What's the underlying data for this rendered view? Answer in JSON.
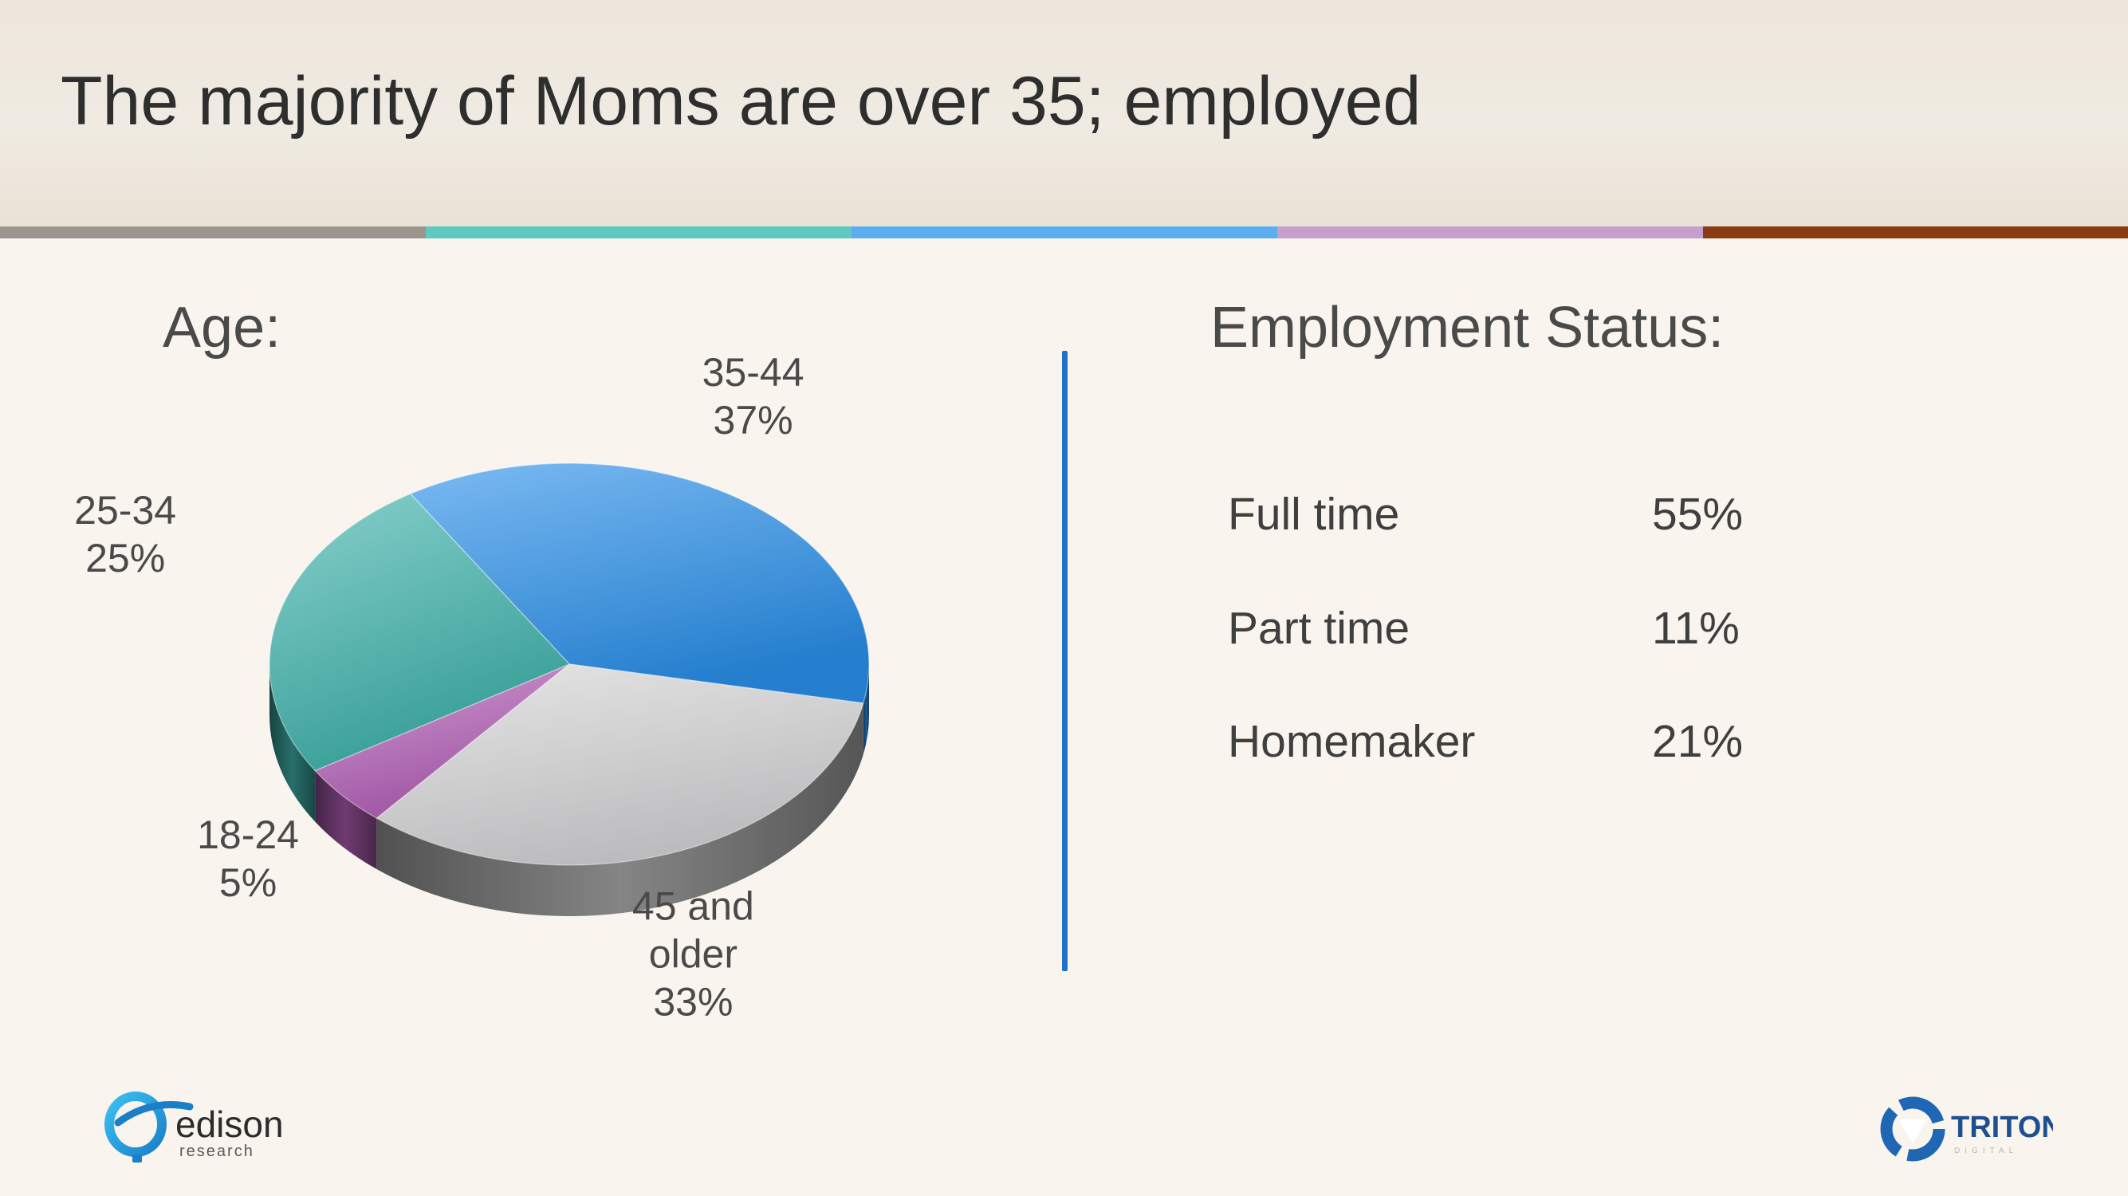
{
  "title": "The majority of Moms are over 35; employed",
  "colors": {
    "stripes": [
      "#9a958e",
      "#5ec9c0",
      "#5aaef0",
      "#c79fcf",
      "#8b3a12"
    ],
    "divider": "#1e73c8"
  },
  "age_section": {
    "label": "Age:"
  },
  "employment_section": {
    "label": "Employment Status:",
    "rows": [
      {
        "label": "Full time",
        "value": "55%"
      },
      {
        "label": "Part time",
        "value": "11%"
      },
      {
        "label": "Homemaker",
        "value": "21%"
      }
    ]
  },
  "chart_data": [
    {
      "type": "pie",
      "title": "Age:",
      "style": "3d-exploded",
      "categories": [
        "35-44",
        "45 and older",
        "18-24",
        "25-34"
      ],
      "values": [
        37,
        33,
        5,
        25
      ],
      "value_labels": [
        "37%",
        "33%",
        "5%",
        "25%"
      ],
      "colors": [
        "#2a90ea",
        "#d6d6d8",
        "#b45fb8",
        "#3fb3ac"
      ],
      "label_lines": [
        [
          "35-44",
          "37%"
        ],
        [
          "45 and",
          "older",
          "33%"
        ],
        [
          "18-24",
          "5%"
        ],
        [
          "25-34",
          "25%"
        ]
      ]
    },
    {
      "type": "table",
      "title": "Employment Status:",
      "categories": [
        "Full time",
        "Part time",
        "Homemaker"
      ],
      "values": [
        55,
        11,
        21
      ]
    }
  ],
  "logos": {
    "edison": {
      "text": "edison",
      "subtext": "research",
      "icon": "edison-research-logo-icon"
    },
    "triton": {
      "text": "TRITON",
      "subtext": "DIGITAL",
      "icon": "triton-digital-logo-icon"
    }
  }
}
